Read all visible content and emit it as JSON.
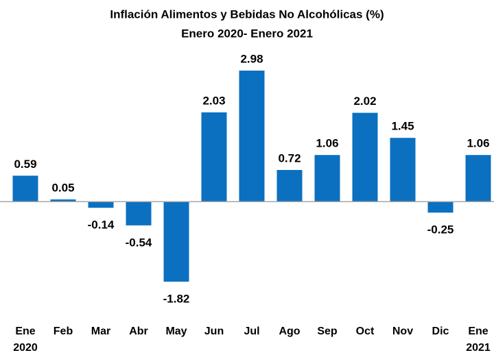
{
  "chart_data": {
    "type": "bar",
    "title": "Inflación Alimentos y Bebidas No Alcohólicas (%)",
    "subtitle": "Enero 2020- Enero 2021",
    "categories": [
      "Ene 2020",
      "Feb",
      "Mar",
      "Abr",
      "May",
      "Jun",
      "Jul",
      "Ago",
      "Sep",
      "Oct",
      "Nov",
      "Dic",
      "Ene 2021"
    ],
    "values": [
      0.59,
      0.05,
      -0.14,
      -0.54,
      -1.82,
      2.03,
      2.98,
      0.72,
      1.06,
      2.02,
      1.45,
      -0.25,
      1.06
    ],
    "color": "#0b70c0"
  }
}
